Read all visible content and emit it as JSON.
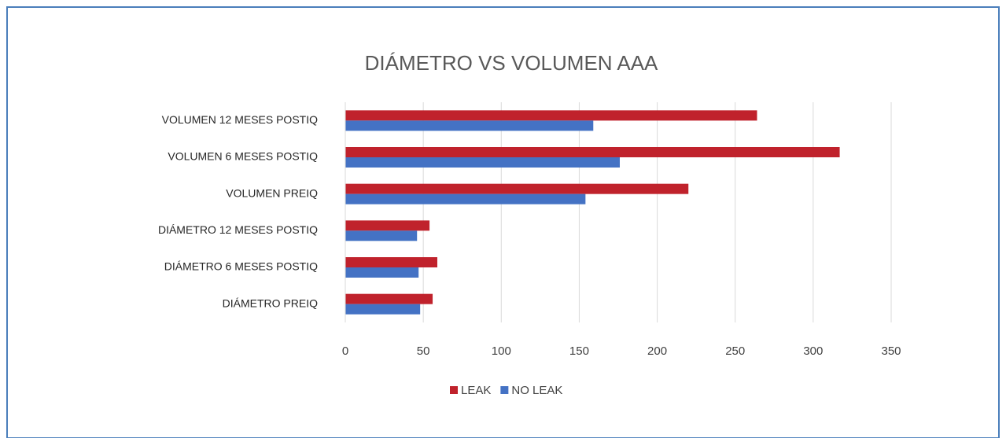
{
  "chart_data": {
    "type": "barh",
    "title": "DIÁMETRO VS VOLUMEN AAA",
    "categories": [
      "VOLUMEN 12 MESES POSTIQ",
      "VOLUMEN 6 MESES POSTIQ",
      "VOLUMEN PREIQ",
      "DIÁMETRO 12 MESES POSTIQ",
      "DIÁMETRO 6 MESES POSTIQ",
      "DIÁMETRO PREIQ"
    ],
    "series": [
      {
        "name": "LEAK",
        "color": "#c0222c",
        "values": [
          264,
          317,
          220,
          54,
          59,
          56
        ]
      },
      {
        "name": "NO LEAK",
        "color": "#4472c4",
        "values": [
          159,
          176,
          154,
          46,
          47,
          48
        ]
      }
    ],
    "xlim": [
      0,
      350
    ],
    "xticks": [
      0,
      50,
      100,
      150,
      200,
      250,
      300,
      350
    ],
    "grid": true,
    "legend": "bottom"
  }
}
